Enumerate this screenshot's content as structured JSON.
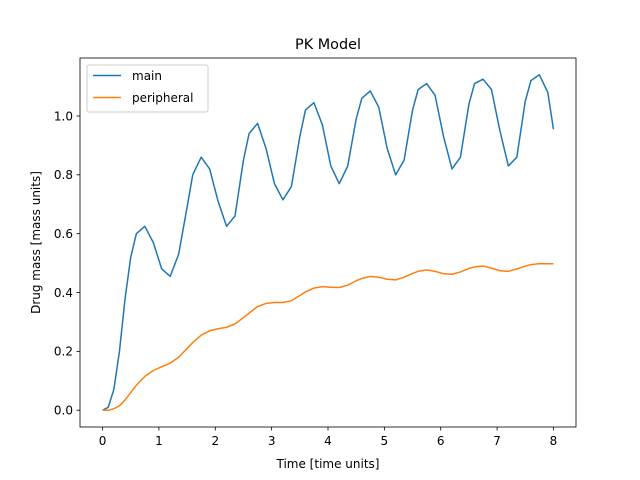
{
  "chart_data": {
    "type": "line",
    "title": "PK Model",
    "xlabel": "Time [time units]",
    "ylabel": "Drug mass [mass units]",
    "xlim": [
      -0.4,
      8.4
    ],
    "ylim": [
      -0.057,
      1.197
    ],
    "xticks": [
      0,
      1,
      2,
      3,
      4,
      5,
      6,
      7,
      8
    ],
    "yticks": [
      0.0,
      0.2,
      0.4,
      0.6,
      0.8,
      1.0
    ],
    "x_tick_labels": [
      "0",
      "1",
      "2",
      "3",
      "4",
      "5",
      "6",
      "7",
      "8"
    ],
    "y_tick_labels": [
      "0.0",
      "0.2",
      "0.4",
      "0.6",
      "0.8",
      "1.0"
    ],
    "grid": false,
    "legend_position": "top-left",
    "series": [
      {
        "name": "main",
        "color": "#1f77b4",
        "x": [
          0,
          0.1,
          0.2,
          0.3,
          0.4,
          0.5,
          0.6,
          0.75,
          0.9,
          1.05,
          1.2,
          1.35,
          1.5,
          1.6,
          1.75,
          1.9,
          2.05,
          2.2,
          2.35,
          2.5,
          2.6,
          2.75,
          2.9,
          3.05,
          3.2,
          3.35,
          3.5,
          3.6,
          3.75,
          3.9,
          4.05,
          4.2,
          4.35,
          4.5,
          4.6,
          4.75,
          4.9,
          5.05,
          5.2,
          5.35,
          5.5,
          5.6,
          5.75,
          5.9,
          6.05,
          6.2,
          6.35,
          6.5,
          6.6,
          6.75,
          6.9,
          7.05,
          7.2,
          7.35,
          7.5,
          7.6,
          7.75,
          7.9,
          8.0
        ],
        "y": [
          0.0,
          0.01,
          0.07,
          0.2,
          0.38,
          0.52,
          0.6,
          0.625,
          0.57,
          0.48,
          0.455,
          0.53,
          0.69,
          0.8,
          0.86,
          0.82,
          0.71,
          0.625,
          0.66,
          0.85,
          0.94,
          0.975,
          0.89,
          0.77,
          0.715,
          0.76,
          0.93,
          1.02,
          1.045,
          0.97,
          0.83,
          0.77,
          0.83,
          0.99,
          1.06,
          1.085,
          1.03,
          0.89,
          0.8,
          0.85,
          1.02,
          1.09,
          1.11,
          1.07,
          0.93,
          0.82,
          0.86,
          1.04,
          1.11,
          1.125,
          1.09,
          0.95,
          0.83,
          0.86,
          1.05,
          1.12,
          1.14,
          1.08,
          0.955
        ]
      },
      {
        "name": "peripheral",
        "color": "#ff7f0e",
        "x": [
          0,
          0.1,
          0.2,
          0.3,
          0.4,
          0.5,
          0.6,
          0.75,
          0.9,
          1.05,
          1.2,
          1.35,
          1.5,
          1.6,
          1.75,
          1.9,
          2.05,
          2.2,
          2.35,
          2.5,
          2.6,
          2.75,
          2.9,
          3.05,
          3.2,
          3.35,
          3.5,
          3.6,
          3.75,
          3.9,
          4.05,
          4.2,
          4.35,
          4.5,
          4.6,
          4.75,
          4.9,
          5.05,
          5.2,
          5.35,
          5.5,
          5.6,
          5.75,
          5.9,
          6.05,
          6.2,
          6.35,
          6.5,
          6.6,
          6.75,
          6.9,
          7.05,
          7.2,
          7.35,
          7.5,
          7.6,
          7.75,
          7.9,
          8.0
        ],
        "y": [
          0.0,
          0.0,
          0.005,
          0.015,
          0.035,
          0.06,
          0.085,
          0.115,
          0.135,
          0.148,
          0.16,
          0.18,
          0.21,
          0.23,
          0.255,
          0.27,
          0.277,
          0.282,
          0.293,
          0.315,
          0.33,
          0.352,
          0.363,
          0.366,
          0.366,
          0.372,
          0.39,
          0.402,
          0.415,
          0.42,
          0.418,
          0.417,
          0.425,
          0.44,
          0.448,
          0.455,
          0.452,
          0.445,
          0.443,
          0.452,
          0.465,
          0.472,
          0.477,
          0.472,
          0.464,
          0.462,
          0.47,
          0.482,
          0.487,
          0.49,
          0.483,
          0.474,
          0.472,
          0.48,
          0.49,
          0.495,
          0.498,
          0.498,
          0.498
        ]
      }
    ]
  }
}
